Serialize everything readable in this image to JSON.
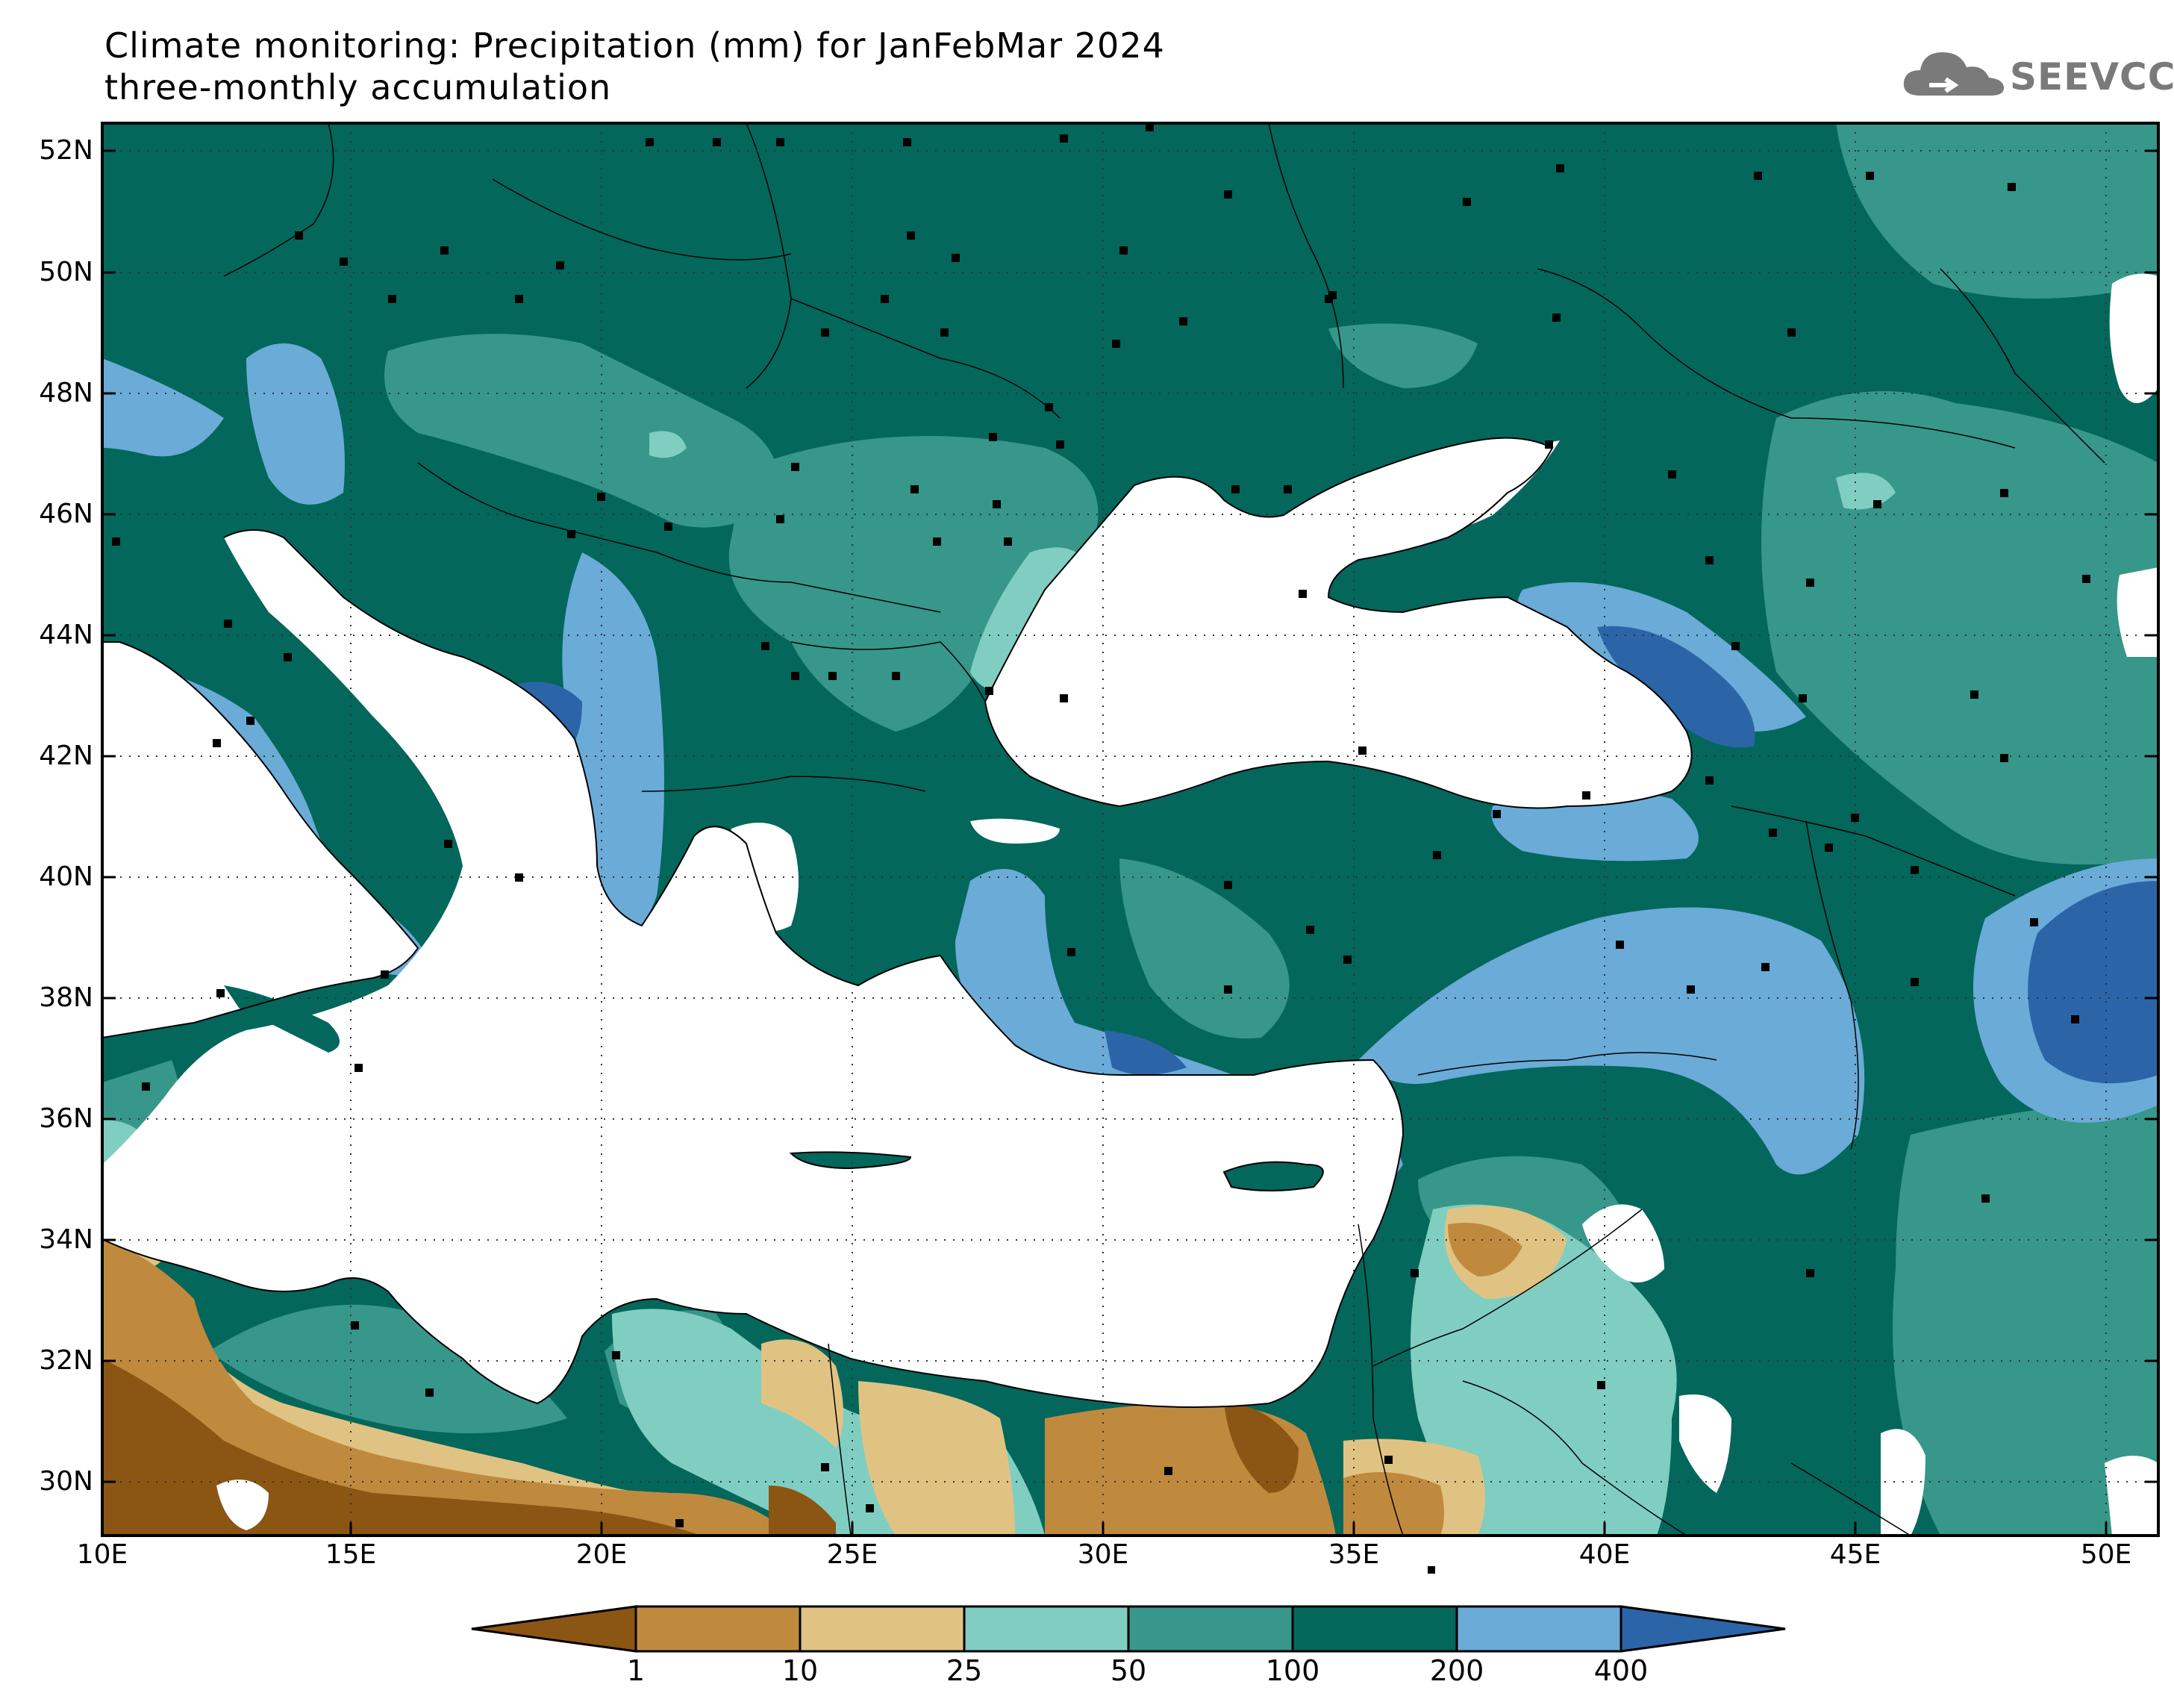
{
  "header": {
    "title_line1": "Climate monitoring: Precipitation (mm) for JanFebMar 2024",
    "title_line2": "three-monthly accumulation",
    "logo_text": "SEEVCCC"
  },
  "map": {
    "lat_labels": [
      "52N",
      "50N",
      "48N",
      "46N",
      "44N",
      "42N",
      "40N",
      "38N",
      "36N",
      "34N",
      "32N",
      "30N"
    ],
    "lon_labels": [
      "10E",
      "15E",
      "20E",
      "25E",
      "30E",
      "35E",
      "40E",
      "45E",
      "50E"
    ],
    "lon_range": [
      10,
      51
    ],
    "lat_range": [
      29,
      52.5
    ]
  },
  "colorbar": {
    "labels": [
      "1",
      "10",
      "25",
      "50",
      "100",
      "200",
      "400"
    ],
    "colors": [
      "#8b5513",
      "#c08a3e",
      "#e0c383",
      "#80cec1",
      "#36978a",
      "#03675b",
      "#6aabd8",
      "#2b65a8"
    ]
  },
  "colors": {
    "sea": "#ffffff",
    "station": "#000000"
  }
}
